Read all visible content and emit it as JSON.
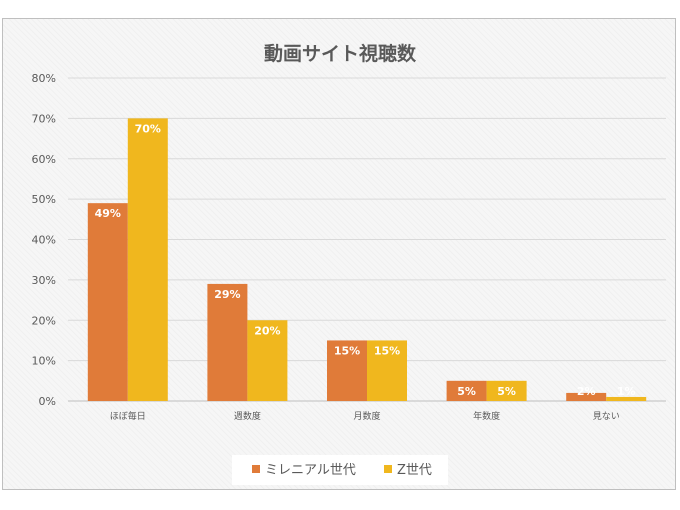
{
  "chart_data": {
    "type": "bar",
    "title": "動画サイト視聴数",
    "categories": [
      "ほぼ毎日",
      "週数度",
      "月数度",
      "年数度",
      "見ない"
    ],
    "series": [
      {
        "name": "ミレニアル世代",
        "values": [
          49,
          29,
          15,
          5,
          2
        ],
        "color": "#e07b39"
      },
      {
        "name": "Z世代",
        "values": [
          70,
          20,
          15,
          5,
          1
        ],
        "color": "#f0b71e"
      }
    ],
    "ylim": [
      0,
      80
    ],
    "yticks": [
      0,
      10,
      20,
      30,
      40,
      50,
      60,
      70,
      80
    ],
    "value_suffix": "%",
    "grid": true,
    "legend_position": "bottom"
  }
}
